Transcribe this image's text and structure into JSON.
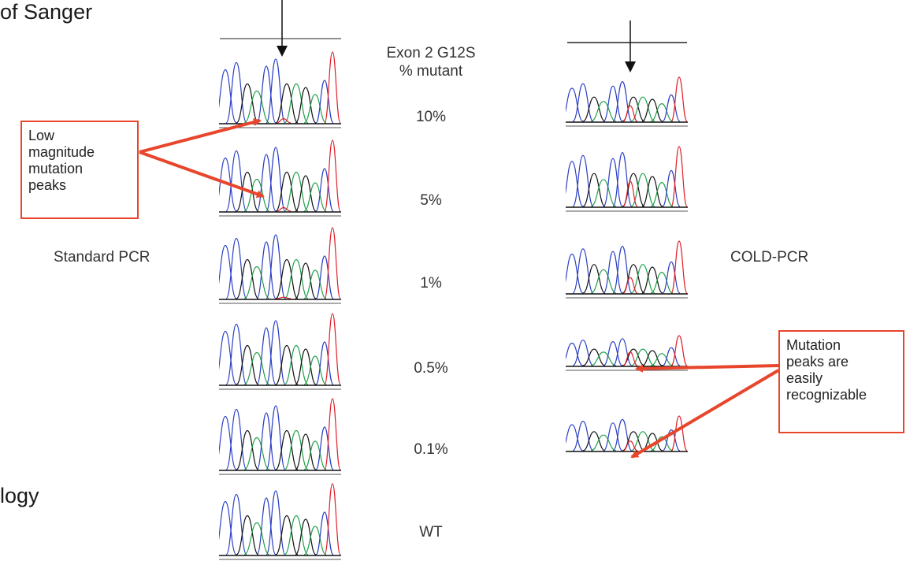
{
  "fragments": {
    "top_left": "of Sanger",
    "bottom_left": "logy"
  },
  "header": {
    "line1": "Exon 2 G12S",
    "line2": "% mutant"
  },
  "method_labels": {
    "left": "Standard PCR",
    "right": "COLD-PCR"
  },
  "rows": [
    {
      "percent": "10%"
    },
    {
      "percent": "5%"
    },
    {
      "percent": "1%"
    },
    {
      "percent": "0.5%"
    },
    {
      "percent": "0.1%"
    },
    {
      "percent": "WT"
    }
  ],
  "callouts": {
    "left_lines": [
      "Low",
      "magnitude",
      "mutation",
      "peaks"
    ],
    "right_lines": [
      "Mutation",
      "peaks are",
      "easily",
      "recognizable"
    ]
  },
  "colors": {
    "A": "#1fa04a",
    "C": "#2a3fc4",
    "G": "#111111",
    "T": "#e0202a",
    "callout": "#e8462c"
  },
  "icons": {
    "position_marker": "down-arrow-icon"
  }
}
